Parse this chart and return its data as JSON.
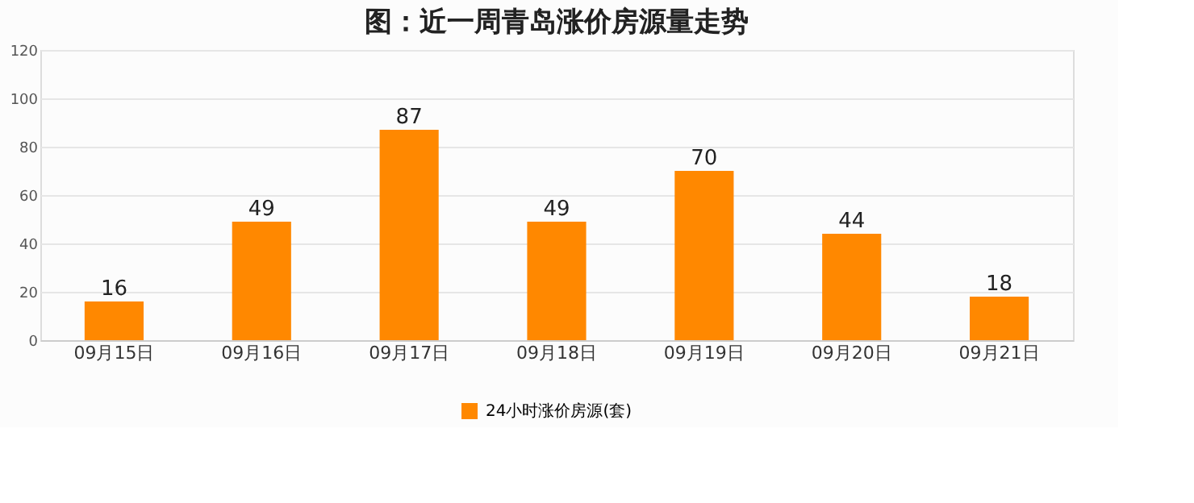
{
  "chart_data": {
    "type": "bar",
    "title": "图：近一周青岛涨价房源量走势",
    "categories": [
      "09月15日",
      "09月16日",
      "09月17日",
      "09月18日",
      "09月19日",
      "09月20日",
      "09月21日"
    ],
    "series": [
      {
        "name": "24小时涨价房源(套)",
        "color": "#ff8800",
        "values": [
          16,
          49,
          87,
          49,
          70,
          44,
          18
        ]
      }
    ],
    "ylim": [
      0,
      120
    ],
    "yticks": [
      0,
      20,
      40,
      60,
      80,
      100,
      120
    ],
    "grid": "y",
    "legend": "bottom",
    "data_labels": true
  }
}
